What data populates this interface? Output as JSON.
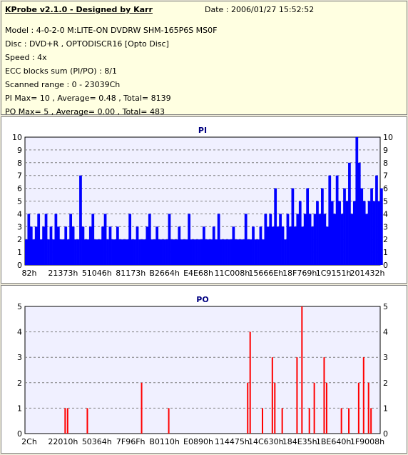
{
  "header": {
    "title": "KProbe v2.1.0 - Designed by Karr",
    "date_label": "Date : 2006/01/27 15:52:52"
  },
  "info_lines": [
    "Model : 4-0-2-0 M:LITE-ON DVDRW SHM-165P6S MS0F",
    "Disc : DVD+R , OPTODISCR16 [Opto Disc]",
    "Speed : 4x",
    "ECC blocks sum (PI/PO) : 8/1",
    "Scanned range : 0 - 23039Ch",
    "PI Max= 10 , Average= 0.48 , Total= 8139",
    "PO Max= 5 , Average= 0.00 , Total= 483"
  ],
  "colors": {
    "pi": "#0000ff",
    "po": "#ff0000",
    "plot_bg": "#f0f0ff",
    "info_bg": "#ffffe1"
  },
  "chart_data": [
    {
      "type": "bar",
      "title": "PI",
      "ylim": [
        0,
        10
      ],
      "yticks": [
        0,
        1,
        2,
        3,
        4,
        5,
        6,
        7,
        8,
        9,
        10
      ],
      "xlim": [
        0,
        144
      ],
      "xtick_labels": [
        "82h",
        "21373h",
        "51046h",
        "81173h",
        "B2664h",
        "E4E68h",
        "11C008h",
        "15666Eh",
        "18F769h",
        "1C9151h",
        "201432h"
      ],
      "grid": true,
      "series": [
        {
          "name": "PI",
          "values": [
            2,
            4,
            3,
            2,
            3,
            4,
            2,
            3,
            4,
            2,
            3,
            2,
            4,
            3,
            2,
            2,
            3,
            2,
            4,
            3,
            2,
            2,
            7,
            3,
            2,
            2,
            3,
            4,
            2,
            2,
            2,
            3,
            4,
            2,
            3,
            2,
            2,
            3,
            2,
            2,
            2,
            2,
            4,
            2,
            2,
            3,
            2,
            2,
            2,
            3,
            4,
            2,
            2,
            3,
            2,
            2,
            2,
            2,
            4,
            2,
            2,
            2,
            3,
            2,
            2,
            2,
            4,
            2,
            2,
            2,
            2,
            2,
            3,
            2,
            2,
            2,
            3,
            2,
            4,
            2,
            2,
            2,
            2,
            2,
            3,
            2,
            2,
            2,
            2,
            4,
            2,
            2,
            3,
            2,
            2,
            3,
            2,
            4,
            3,
            4,
            3,
            6,
            3,
            4,
            3,
            2,
            4,
            3,
            6,
            3,
            4,
            5,
            3,
            4,
            6,
            4,
            3,
            4,
            5,
            4,
            6,
            4,
            3,
            7,
            5,
            4,
            7,
            5,
            4,
            6,
            5,
            8,
            4,
            5,
            10,
            8,
            6,
            5,
            4,
            5,
            6,
            5,
            7,
            5,
            6
          ]
        }
      ]
    },
    {
      "type": "bar",
      "title": "PO",
      "ylim": [
        0,
        5
      ],
      "yticks": [
        0,
        1,
        2,
        3,
        4,
        5
      ],
      "xlim": [
        0,
        144
      ],
      "xtick_labels": [
        "2Ch",
        "22010h",
        "50364h",
        "7F96Fh",
        "B0110h",
        "E0890h",
        "114475h",
        "14C630h",
        "184E35h",
        "1BE640h",
        "1F9008h"
      ],
      "grid": true,
      "series": [
        {
          "name": "PO",
          "spikes": [
            [
              16,
              1
            ],
            [
              17,
              1
            ],
            [
              25,
              1
            ],
            [
              47,
              2
            ],
            [
              58,
              1
            ],
            [
              90,
              2
            ],
            [
              91,
              4
            ],
            [
              96,
              1
            ],
            [
              100,
              3
            ],
            [
              101,
              2
            ],
            [
              104,
              1
            ],
            [
              110,
              3
            ],
            [
              112,
              5
            ],
            [
              115,
              1
            ],
            [
              117,
              2
            ],
            [
              121,
              3
            ],
            [
              122,
              2
            ],
            [
              128,
              1
            ],
            [
              131,
              1
            ],
            [
              135,
              2
            ],
            [
              137,
              3
            ],
            [
              139,
              2
            ],
            [
              140,
              1
            ]
          ]
        }
      ]
    }
  ]
}
